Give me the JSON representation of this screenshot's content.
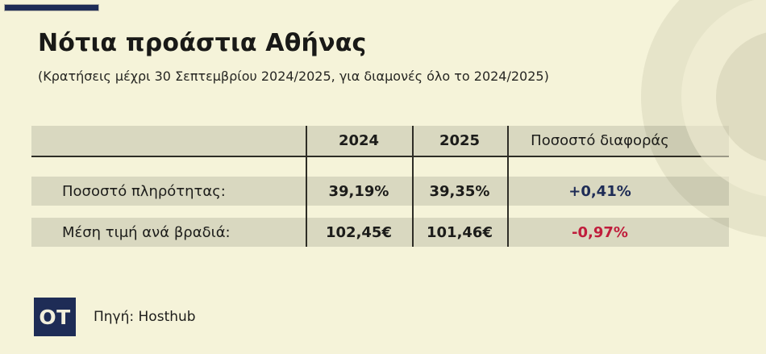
{
  "page": {
    "background_color": "#f5f3d9",
    "band_color": "#d9d8c0",
    "accent_navy": "#1e2c56",
    "accent_red": "#c01d3c"
  },
  "header": {
    "title": "Νότια προάστια Αθήνας",
    "subtitle": "(Κρατήσεις μέχρι 30 Σεπτεμβρίου 2024/2025, για διαμονές όλο το 2024/2025)"
  },
  "chart_data": {
    "type": "table",
    "title": "Νότια προάστια Αθήνας",
    "subtitle": "(Κρατήσεις μέχρι 30 Σεπτεμβρίου 2024/2025, για διαμονές όλο το 2024/2025)",
    "columns": [
      "",
      "2024",
      "2025",
      "Ποσοστό διαφοράς"
    ],
    "rows": [
      {
        "label": "Ποσοστό πληρότητας:",
        "y2024": "39,19%",
        "y2025": "39,35%",
        "diff": "+0,41%",
        "diff_color": "#1e2c56"
      },
      {
        "label": "Μέση τιμή ανά βραδιά:",
        "y2024": "102,45€",
        "y2025": "101,46€",
        "diff": "-0,97%",
        "diff_color": "#c01d3c"
      }
    ]
  },
  "footer": {
    "logo_text": "OT",
    "source": "Πηγή: Hosthub"
  }
}
